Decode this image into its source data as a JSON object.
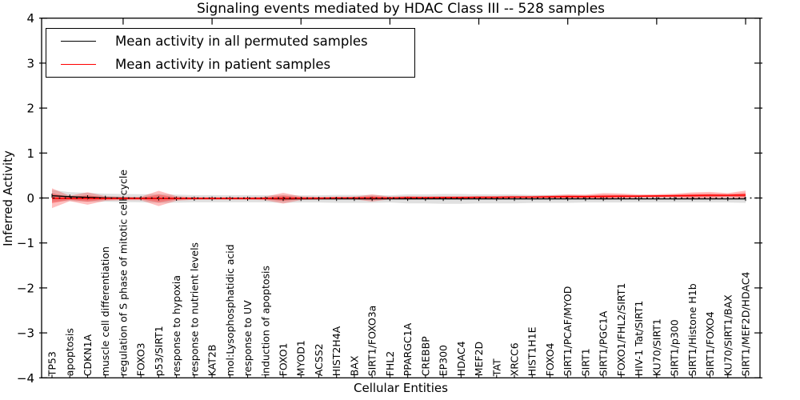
{
  "chart_data": {
    "type": "line",
    "title": "Signaling events mediated by HDAC Class III -- 528 samples",
    "xlabel": "Cellular Entities",
    "ylabel": "Inferred Activity",
    "ylim": [
      -4,
      4
    ],
    "yticks": [
      4,
      3,
      2,
      1,
      0,
      -1,
      -2,
      -3,
      -4
    ],
    "grid": false,
    "zero_line_style": "dotted",
    "legend_position": "upper left",
    "categories": [
      "TP53",
      "apoptosis",
      "CDKN1A",
      "muscle cell differentiation",
      "regulation of S phase of mitotic cell cycle",
      "FOXO3",
      "p53/SIRT1",
      "response to hypoxia",
      "response to nutrient levels",
      "KAT2B",
      "mol:Lysophosphatidic acid",
      "response to UV",
      "induction of apoptosis",
      "FOXO1",
      "MYOD1",
      "ACSS2",
      "HIST2H4A",
      "BAX",
      "SIRT1/FOXO3a",
      "FHL2",
      "PPARGC1A",
      "CREBBP",
      "EP300",
      "HDAC4",
      "MEF2D",
      "TAT",
      "XRCC6",
      "HIST1H1E",
      "FOXO4",
      "SIRT1/PCAF/MYOD",
      "SIRT1",
      "SIRT1/PGC1A",
      "FOXO1/FHL2/SIRT1",
      "HIV-1 Tat/SIRT1",
      "KU70/SIRT1",
      "SIRT1/p300",
      "SIRT1/Histone H1b",
      "SIRT1/FOXO4",
      "KU70/SIRT1/BAX",
      "SIRT1/MEF2D/HDAC4"
    ],
    "series": [
      {
        "name": "Mean activity in all permuted samples",
        "color": "#000000",
        "band_color": "#bdbdbd",
        "values": [
          0.05,
          0.03,
          0.015,
          0.005,
          0.0,
          -0.005,
          -0.01,
          -0.015,
          -0.015,
          -0.015,
          -0.015,
          -0.015,
          -0.015,
          -0.02,
          -0.02,
          -0.02,
          -0.02,
          -0.02,
          -0.02,
          -0.02,
          -0.02,
          -0.02,
          -0.02,
          -0.02,
          -0.02,
          -0.02,
          -0.02,
          -0.02,
          -0.02,
          -0.02,
          -0.02,
          -0.02,
          -0.02,
          -0.02,
          -0.02,
          -0.02,
          -0.02,
          -0.02,
          -0.02,
          -0.02
        ],
        "band_halfwidth": [
          0.13,
          0.1,
          0.1,
          0.09,
          0.09,
          0.09,
          0.1,
          0.09,
          0.08,
          0.08,
          0.08,
          0.08,
          0.08,
          0.09,
          0.08,
          0.08,
          0.09,
          0.09,
          0.09,
          0.08,
          0.1,
          0.1,
          0.11,
          0.11,
          0.1,
          0.1,
          0.1,
          0.09,
          0.09,
          0.09,
          0.08,
          0.08,
          0.08,
          0.08,
          0.08,
          0.08,
          0.08,
          0.08,
          0.08,
          0.09
        ]
      },
      {
        "name": "Mean activity in patient samples",
        "color": "#ff0000",
        "band_color": "#ff0000",
        "values": [
          -0.005,
          -0.01,
          -0.01,
          -0.01,
          -0.01,
          -0.01,
          -0.01,
          -0.01,
          -0.01,
          -0.01,
          -0.01,
          -0.01,
          -0.01,
          -0.005,
          -0.005,
          -0.005,
          0.0,
          0.0,
          0.0,
          0.0,
          0.005,
          0.005,
          0.01,
          0.01,
          0.015,
          0.015,
          0.02,
          0.02,
          0.025,
          0.03,
          0.03,
          0.035,
          0.04,
          0.04,
          0.045,
          0.05,
          0.055,
          0.06,
          0.06,
          0.065
        ],
        "band_halfwidth": [
          0.22,
          0.06,
          0.14,
          0.05,
          0.04,
          0.04,
          0.17,
          0.05,
          0.03,
          0.03,
          0.03,
          0.03,
          0.04,
          0.12,
          0.04,
          0.03,
          0.03,
          0.03,
          0.08,
          0.03,
          0.04,
          0.03,
          0.03,
          0.03,
          0.03,
          0.03,
          0.03,
          0.03,
          0.035,
          0.05,
          0.045,
          0.075,
          0.06,
          0.04,
          0.04,
          0.045,
          0.07,
          0.075,
          0.05,
          0.1
        ]
      }
    ]
  }
}
